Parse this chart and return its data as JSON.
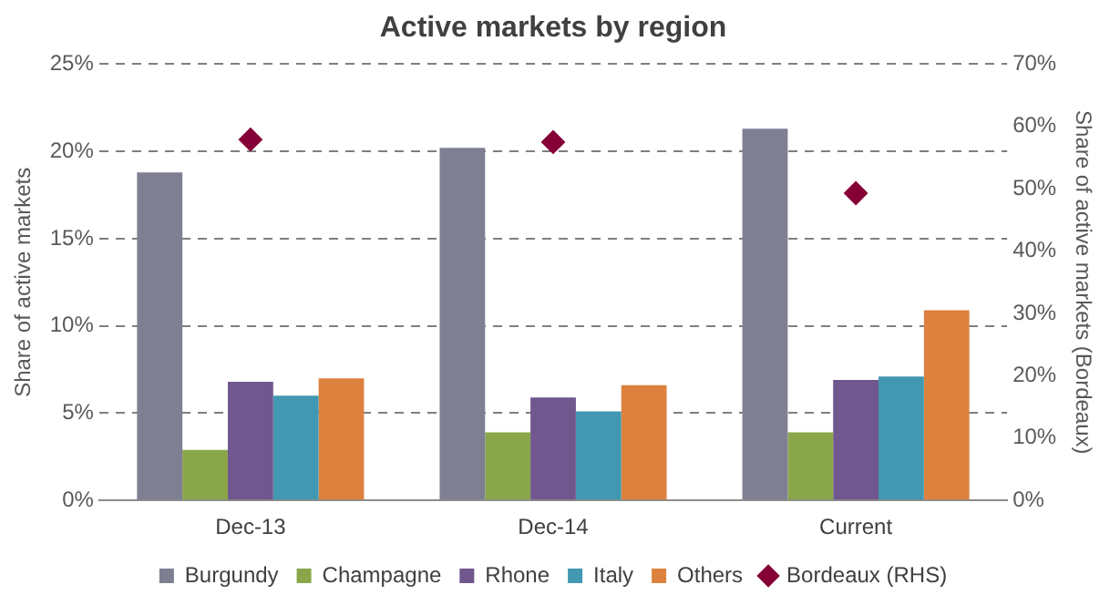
{
  "chart_data": {
    "type": "bar",
    "title": "Active markets by region",
    "ylabel": "Share of active markets",
    "y2label": "Share of active markets (Bordeaux)",
    "categories": [
      "Dec-13",
      "Dec-14",
      "Current"
    ],
    "series": [
      {
        "name": "Burgundy",
        "color": "#7f7f94",
        "values": [
          18.8,
          20.2,
          21.3
        ]
      },
      {
        "name": "Champagne",
        "color": "#8aa64b",
        "values": [
          2.9,
          3.9,
          3.9
        ]
      },
      {
        "name": "Rhone",
        "color": "#70578e",
        "values": [
          6.8,
          5.9,
          6.9
        ]
      },
      {
        "name": "Italy",
        "color": "#4198b0",
        "values": [
          6.0,
          5.1,
          7.1
        ]
      },
      {
        "name": "Others",
        "color": "#dc823e",
        "values": [
          7.0,
          6.6,
          10.9
        ]
      },
      {
        "name": "Bordeaux (RHS)",
        "type": "scatter",
        "axis": "y2",
        "color": "#860038",
        "values": [
          57.9,
          57.5,
          49.3
        ]
      }
    ],
    "ylim": [
      0,
      25
    ],
    "yticks": [
      {
        "value": 0,
        "label": "0%"
      },
      {
        "value": 5,
        "label": "5%"
      },
      {
        "value": 10,
        "label": "10%"
      },
      {
        "value": 15,
        "label": "15%"
      },
      {
        "value": 20,
        "label": "20%"
      },
      {
        "value": 25,
        "label": "25%"
      }
    ],
    "y2lim": [
      0,
      70
    ],
    "y2ticks": [
      {
        "value": 0,
        "label": "0%"
      },
      {
        "value": 10,
        "label": "10%"
      },
      {
        "value": 20,
        "label": "20%"
      },
      {
        "value": 30,
        "label": "30%"
      },
      {
        "value": 40,
        "label": "40%"
      },
      {
        "value": 50,
        "label": "50%"
      },
      {
        "value": 60,
        "label": "60%"
      },
      {
        "value": 70,
        "label": "70%"
      }
    ],
    "grid": "y",
    "legend": "bottom",
    "marker": "diamond"
  }
}
